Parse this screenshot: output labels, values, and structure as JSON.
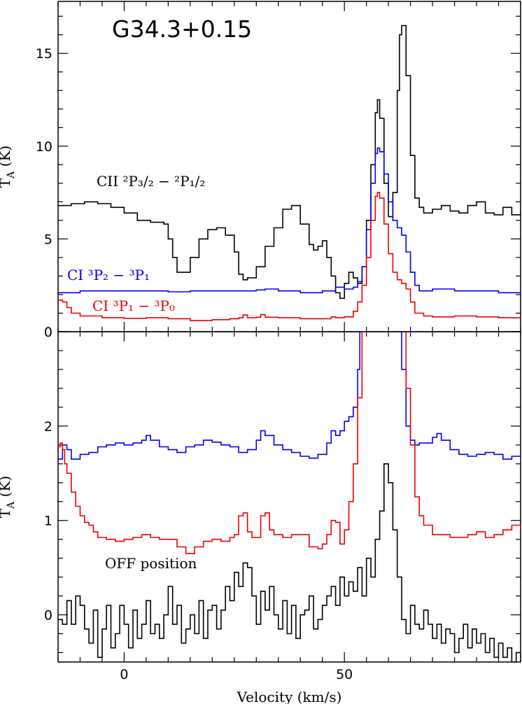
{
  "chart_data": [
    {
      "type": "line",
      "title": "G34.3+0.15",
      "xlabel": "",
      "ylabel": "T_A (K)",
      "xlim": [
        -15,
        90
      ],
      "ylim": [
        0,
        17.8
      ],
      "yticks": [
        0,
        5,
        10,
        15
      ],
      "grid": false,
      "annotations": [
        {
          "id": "cii",
          "text": "CII ²P₃/₂ − ²P₁/₂",
          "color": "#000000"
        },
        {
          "id": "ci21",
          "text": "CI ³P₂ − ³P₁",
          "color": "#0000ee"
        },
        {
          "id": "ci10",
          "text": "CI ³P₁ − ³P₀",
          "color": "#ee0000"
        }
      ],
      "series": [
        {
          "id": "cii",
          "color": "#000000",
          "x": [
            -15,
            -12,
            -9,
            -6,
            -3,
            0,
            3,
            6,
            9,
            10,
            11,
            12,
            15,
            17,
            19,
            21,
            23,
            25,
            26,
            27,
            28,
            30,
            32,
            34,
            36,
            38,
            40,
            42,
            43,
            44,
            45,
            46,
            47,
            48,
            49,
            50,
            51,
            52,
            53,
            54,
            55,
            56,
            57,
            57.5,
            58,
            59,
            60,
            61,
            62,
            62.5,
            63,
            64,
            65,
            66,
            67,
            68,
            70,
            72,
            74,
            76,
            78,
            80,
            82,
            84,
            86,
            88,
            90
          ],
          "y": [
            6.8,
            6.9,
            7.0,
            6.9,
            6.7,
            6.4,
            6.0,
            5.9,
            5.8,
            5.0,
            4.0,
            3.2,
            4.0,
            5.0,
            5.5,
            5.6,
            5.2,
            4.3,
            3.1,
            2.8,
            2.9,
            3.5,
            4.6,
            5.6,
            6.6,
            6.8,
            5.8,
            4.7,
            4.4,
            4.6,
            4.9,
            4.0,
            3.0,
            2.1,
            1.8,
            2.6,
            3.2,
            2.9,
            2.6,
            3.5,
            6.0,
            9.0,
            11.8,
            12.5,
            11.5,
            8.0,
            6.2,
            7.5,
            13.0,
            16.0,
            16.5,
            13.8,
            9.5,
            7.2,
            6.7,
            6.4,
            6.6,
            6.8,
            6.5,
            6.4,
            6.8,
            7.0,
            6.4,
            6.3,
            6.7,
            6.3,
            6.5
          ]
        },
        {
          "id": "ci21",
          "color": "#0000ee",
          "x": [
            -15,
            -10,
            -5,
            0,
            5,
            10,
            15,
            20,
            25,
            30,
            32,
            35,
            40,
            45,
            48,
            50,
            52,
            53,
            54,
            55,
            56,
            57,
            57.5,
            58,
            59,
            60,
            61,
            62,
            63,
            64,
            65,
            66,
            67,
            70,
            75,
            80,
            85,
            90
          ],
          "y": [
            2.1,
            2.2,
            2.2,
            2.2,
            2.2,
            2.15,
            2.2,
            2.2,
            2.2,
            2.25,
            2.3,
            2.2,
            2.1,
            2.2,
            2.4,
            2.3,
            2.4,
            2.7,
            3.5,
            5.5,
            8.0,
            9.6,
            9.9,
            9.7,
            8.5,
            7.0,
            6.0,
            5.6,
            5.2,
            4.3,
            3.2,
            2.5,
            2.2,
            2.3,
            2.2,
            2.2,
            2.1,
            2.05
          ]
        },
        {
          "id": "ci10",
          "color": "#ee0000",
          "x": [
            -15,
            -14,
            -13,
            -12,
            -10,
            -5,
            0,
            5,
            10,
            15,
            20,
            24,
            26,
            27,
            28,
            30,
            31,
            32,
            35,
            40,
            45,
            47,
            48,
            50,
            52,
            53,
            54,
            55,
            56,
            57,
            57.5,
            58,
            59,
            60,
            61,
            62,
            63,
            64,
            65,
            66,
            68,
            70,
            75,
            80,
            85,
            90
          ],
          "y": [
            1.7,
            1.6,
            1.3,
            1.0,
            0.85,
            0.75,
            0.72,
            0.75,
            0.7,
            0.6,
            0.65,
            0.7,
            0.75,
            0.9,
            0.75,
            0.78,
            0.92,
            0.78,
            0.75,
            0.7,
            0.7,
            0.8,
            0.75,
            0.8,
            1.1,
            1.6,
            2.5,
            4.0,
            6.0,
            7.3,
            7.5,
            7.2,
            5.8,
            4.2,
            3.2,
            2.8,
            2.6,
            2.3,
            1.6,
            1.0,
            0.85,
            0.8,
            0.85,
            0.8,
            0.75,
            0.8
          ]
        }
      ]
    },
    {
      "type": "line",
      "title": "",
      "xlabel": "Velocity (km/s)",
      "ylabel": "T_A (K)",
      "xlim": [
        -15,
        90
      ],
      "ylim": [
        -0.5,
        3.0
      ],
      "yticks": [
        0,
        1,
        2
      ],
      "xticks": [
        0,
        50
      ],
      "grid": false,
      "annotations": [
        {
          "id": "off",
          "text": "OFF position",
          "color": "#000000"
        }
      ],
      "series": [
        {
          "id": "ci21",
          "color": "#0000ee",
          "x": [
            -15,
            -14,
            -13,
            -12,
            -10,
            -8,
            -6,
            -4,
            -2,
            0,
            2,
            4,
            5,
            6,
            8,
            10,
            12,
            14,
            16,
            18,
            20,
            22,
            24,
            26,
            28,
            30,
            31,
            32,
            34,
            36,
            38,
            40,
            42,
            44,
            46,
            47,
            48,
            49,
            50,
            51,
            52,
            53,
            53.5,
            54,
            62,
            62.5,
            63,
            64,
            65,
            66,
            67,
            68,
            70,
            71,
            72,
            74,
            76,
            78,
            80,
            82,
            84,
            86,
            88,
            90
          ],
          "y": [
            1.65,
            1.8,
            1.75,
            1.65,
            1.7,
            1.72,
            1.78,
            1.8,
            1.82,
            1.8,
            1.82,
            1.85,
            1.9,
            1.85,
            1.78,
            1.75,
            1.72,
            1.78,
            1.8,
            1.85,
            1.83,
            1.8,
            1.78,
            1.72,
            1.75,
            1.85,
            1.95,
            1.9,
            1.8,
            1.75,
            1.72,
            1.68,
            1.66,
            1.7,
            1.82,
            1.95,
            1.9,
            1.95,
            2.05,
            2.1,
            2.2,
            2.6,
            3.1,
            3.5,
            3.5,
            3.0,
            2.6,
            2.0,
            1.85,
            1.8,
            1.82,
            1.82,
            1.88,
            1.92,
            1.85,
            1.75,
            1.7,
            1.68,
            1.7,
            1.72,
            1.7,
            1.65,
            1.68,
            1.68
          ]
        },
        {
          "id": "ci10",
          "color": "#ee0000",
          "x": [
            -15,
            -14.5,
            -14,
            -13.5,
            -13,
            -12,
            -11,
            -10,
            -9,
            -8,
            -7,
            -6,
            -4,
            -2,
            0,
            2,
            4,
            6,
            8,
            10,
            12,
            14,
            16,
            18,
            20,
            22,
            24,
            25,
            26,
            27,
            28,
            29,
            30,
            31,
            32,
            33,
            34,
            36,
            38,
            40,
            42,
            44,
            45,
            46,
            47,
            48,
            49,
            50,
            51,
            52,
            53,
            54,
            55,
            56,
            62.5,
            63,
            64,
            65,
            66,
            67,
            68,
            70,
            72,
            74,
            76,
            78,
            80,
            82,
            84,
            86,
            88,
            90
          ],
          "y": [
            1.78,
            1.82,
            1.75,
            1.6,
            1.5,
            1.3,
            1.15,
            1.05,
            0.98,
            0.95,
            0.88,
            0.82,
            0.8,
            0.78,
            0.8,
            0.82,
            0.85,
            0.82,
            0.8,
            0.8,
            0.72,
            0.65,
            0.72,
            0.78,
            0.8,
            0.78,
            0.82,
            0.85,
            1.05,
            1.08,
            0.88,
            0.82,
            0.82,
            1.05,
            1.08,
            0.9,
            0.85,
            0.82,
            0.85,
            0.85,
            0.72,
            0.7,
            0.75,
            0.85,
            1.0,
            0.98,
            0.75,
            0.9,
            1.2,
            1.6,
            2.3,
            3.0,
            3.5,
            3.5,
            3.5,
            3.2,
            2.4,
            1.8,
            1.25,
            1.05,
            0.95,
            0.85,
            0.85,
            0.82,
            0.82,
            0.85,
            0.88,
            0.82,
            0.85,
            0.9,
            0.95,
            0.9
          ]
        },
        {
          "id": "off",
          "color": "#000000",
          "x": [
            -15,
            -14,
            -13,
            -12,
            -11,
            -10,
            -9,
            -8,
            -7,
            -6,
            -5,
            -4,
            -3,
            -2,
            -1,
            0,
            1,
            2,
            3,
            4,
            5,
            6,
            7,
            8,
            9,
            10,
            11,
            12,
            13,
            14,
            15,
            16,
            17,
            18,
            19,
            20,
            21,
            22,
            23,
            24,
            25,
            26,
            27,
            28,
            29,
            30,
            31,
            32,
            33,
            34,
            35,
            36,
            37,
            38,
            39,
            40,
            41,
            42,
            43,
            44,
            45,
            46,
            47,
            48,
            49,
            50,
            51,
            52,
            53,
            54,
            55,
            56,
            57,
            58,
            59,
            60,
            61,
            62,
            63,
            64,
            65,
            66,
            67,
            68,
            69,
            70,
            71,
            72,
            73,
            74,
            75,
            76,
            77,
            78,
            79,
            80,
            81,
            82,
            83,
            84,
            85,
            86,
            87,
            88,
            89,
            90
          ],
          "y": [
            -0.05,
            -0.1,
            0.15,
            -0.1,
            0.2,
            0.1,
            -0.15,
            -0.3,
            0.05,
            -0.45,
            -0.15,
            0.1,
            -0.35,
            -0.2,
            0.1,
            -0.1,
            -0.35,
            0.05,
            -0.25,
            -0.1,
            0.15,
            -0.2,
            -0.1,
            -0.25,
            0.0,
            0.3,
            -0.1,
            0.1,
            -0.3,
            -0.15,
            0.0,
            -0.2,
            0.15,
            -0.25,
            0.05,
            0.1,
            -0.15,
            0.05,
            0.3,
            0.15,
            0.45,
            0.3,
            0.55,
            0.5,
            0.2,
            -0.1,
            0.25,
            0.05,
            0.3,
            0.0,
            -0.15,
            0.15,
            -0.2,
            0.1,
            -0.25,
            0.0,
            0.05,
            0.2,
            -0.15,
            -0.05,
            0.1,
            0.2,
            0.3,
            0.1,
            0.4,
            0.2,
            0.35,
            0.25,
            0.5,
            0.2,
            0.6,
            0.4,
            0.8,
            1.1,
            1.6,
            1.4,
            0.9,
            0.4,
            -0.05,
            -0.2,
            0.1,
            -0.1,
            -0.15,
            0.05,
            -0.1,
            -0.25,
            -0.1,
            -0.3,
            -0.15,
            -0.2,
            -0.4,
            -0.25,
            -0.1,
            -0.35,
            -0.15,
            -0.3,
            -0.2,
            -0.4,
            -0.25,
            -0.45,
            -0.3,
            -0.45,
            -0.35,
            -0.5,
            -0.4,
            -0.45
          ]
        }
      ]
    }
  ]
}
